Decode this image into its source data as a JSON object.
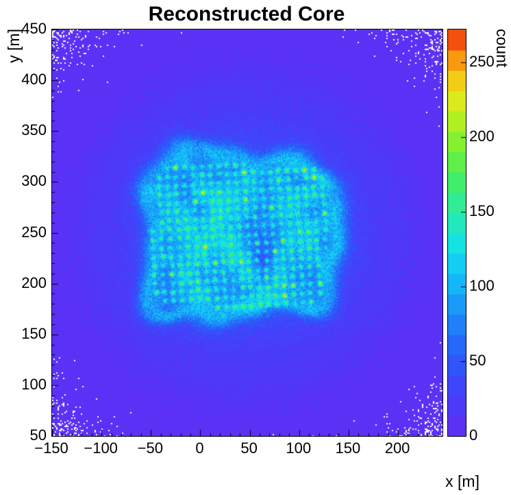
{
  "chart_data": {
    "type": "heatmap",
    "title": "Reconstructed Core",
    "xlabel": "x [m]",
    "ylabel": "y [m]",
    "zlabel": "count",
    "x_range": [
      -150,
      245
    ],
    "y_range": [
      50,
      450
    ],
    "z_range": [
      0,
      272
    ],
    "x_ticks": [
      -150,
      -100,
      -50,
      0,
      50,
      100,
      150,
      200
    ],
    "y_ticks": [
      50,
      100,
      150,
      200,
      250,
      300,
      350,
      400,
      450
    ],
    "z_ticks": [
      0,
      50,
      100,
      150,
      200,
      250
    ],
    "x_minor_step": 10,
    "y_minor_step": 10,
    "grid": false,
    "legend": "colorbar-right",
    "n_contours": 20,
    "palette_stops": [
      [
        0.0,
        [
          98,
          44,
          245
        ]
      ],
      [
        0.1,
        [
          70,
          62,
          250
        ]
      ],
      [
        0.2,
        [
          40,
          92,
          250
        ]
      ],
      [
        0.3,
        [
          28,
          140,
          248
        ]
      ],
      [
        0.4,
        [
          18,
          196,
          248
        ]
      ],
      [
        0.47,
        [
          20,
          225,
          230
        ]
      ],
      [
        0.55,
        [
          40,
          235,
          170
        ]
      ],
      [
        0.62,
        [
          60,
          238,
          110
        ]
      ],
      [
        0.7,
        [
          110,
          240,
          55
        ]
      ],
      [
        0.78,
        [
          180,
          240,
          30
        ]
      ],
      [
        0.85,
        [
          240,
          230,
          25
        ]
      ],
      [
        0.92,
        [
          248,
          160,
          15
        ]
      ],
      [
        0.97,
        [
          246,
          90,
          12
        ]
      ],
      [
        1.0,
        [
          242,
          26,
          10
        ]
      ]
    ],
    "background": {
      "amplitude": 20,
      "falloff_radius_m": 180,
      "falloff_power": 2.6,
      "center": [
        47,
        250
      ]
    },
    "halo": {
      "amplitude": 26,
      "center": [
        45,
        247
      ],
      "sigma": [
        95,
        85
      ]
    },
    "array_region": {
      "center": [
        39,
        248
      ],
      "half_size": [
        95,
        78
      ],
      "corner_radius": 32,
      "plateau_count": 55,
      "rim_boost": 34,
      "edge_softness": 6,
      "boundary_waviness": [
        6,
        4,
        3
      ]
    },
    "detector_grid": {
      "spacing_m": 8.7,
      "rotation_deg": 3,
      "jitter_m": 0.9,
      "dot_sigma_m": 1.6,
      "dot_amplitude": [
        45,
        85
      ],
      "hot_fraction": 0.07,
      "hot_amplitude": 130,
      "margin_m": 7
    },
    "gap": {
      "center": [
        63,
        240
      ],
      "sigma": [
        13,
        18
      ],
      "depth": 55
    },
    "seed": 20240717
  }
}
